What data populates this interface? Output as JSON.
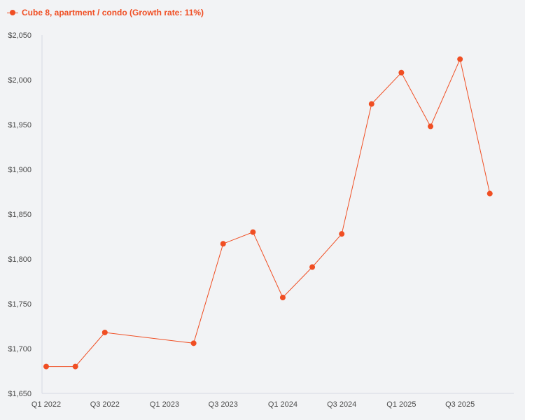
{
  "colors": {
    "series": "#f04e23",
    "axis": "#d5d8e3",
    "background": "#f2f3f5"
  },
  "legend": {
    "label": "Cube 8, apartment / condo (Growth rate: 11%)",
    "icon": "line-dot-marker"
  },
  "chart_data": {
    "type": "line",
    "title": "",
    "xlabel": "",
    "ylabel": "",
    "ylim": [
      1650,
      2050
    ],
    "yticks": [
      1650,
      1700,
      1750,
      1800,
      1850,
      1900,
      1950,
      2000,
      2050
    ],
    "ytick_labels": [
      "$1,650",
      "$1,700",
      "$1,750",
      "$1,800",
      "$1,850",
      "$1,900",
      "$1,950",
      "$2,000",
      "$2,050"
    ],
    "x_range": [
      "2022-01-01",
      "2025-12-01"
    ],
    "xticks": [
      "2022-01-01",
      "2022-07-01",
      "2023-01-01",
      "2023-07-01",
      "2024-01-01",
      "2024-07-01",
      "2025-01-01",
      "2025-07-01"
    ],
    "xtick_labels": [
      "Q1 2022",
      "Q3 2022",
      "Q1 2023",
      "Q3 2023",
      "Q1 2024",
      "Q3 2024",
      "Q1 2025",
      "Q3 2025"
    ],
    "grid": false,
    "legend_position": "top-left",
    "series": [
      {
        "name": "Cube 8, apartment / condo (Growth rate: 11%)",
        "points": [
          {
            "x": "2022-01-01",
            "y": 1680
          },
          {
            "x": "2022-04-01",
            "y": 1680
          },
          {
            "x": "2022-07-01",
            "y": 1718
          },
          {
            "x": "2023-04-01",
            "y": 1706
          },
          {
            "x": "2023-07-01",
            "y": 1817
          },
          {
            "x": "2023-10-01",
            "y": 1830
          },
          {
            "x": "2024-01-01",
            "y": 1757
          },
          {
            "x": "2024-04-01",
            "y": 1791
          },
          {
            "x": "2024-07-01",
            "y": 1828
          },
          {
            "x": "2024-10-01",
            "y": 1973
          },
          {
            "x": "2025-01-01",
            "y": 2008
          },
          {
            "x": "2025-04-01",
            "y": 1948
          },
          {
            "x": "2025-07-01",
            "y": 2023
          },
          {
            "x": "2025-10-01",
            "y": 1873
          }
        ]
      }
    ]
  }
}
